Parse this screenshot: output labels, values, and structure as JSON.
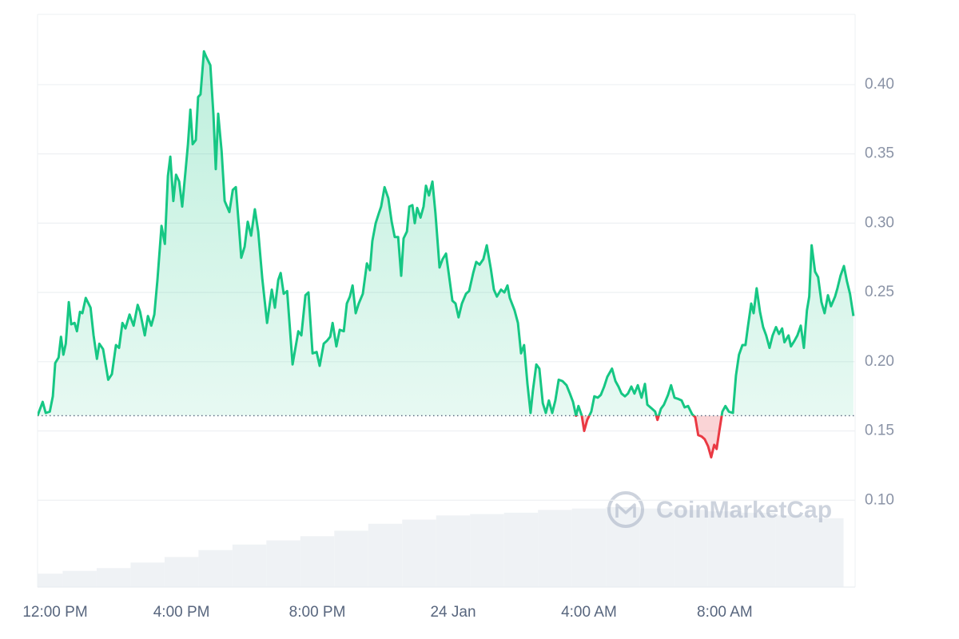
{
  "chart_data": {
    "type": "line",
    "watermark": "CoinMarketCap",
    "xlim": [
      -0.24,
      23.84
    ],
    "xticks": [
      {
        "value": 0,
        "label": "12:00 PM"
      },
      {
        "value": 4,
        "label": "4:00 PM"
      },
      {
        "value": 8,
        "label": "8:00 PM"
      },
      {
        "value": 12,
        "label": "24 Jan"
      },
      {
        "value": 16,
        "label": "4:00 AM"
      },
      {
        "value": 20,
        "label": "8:00 AM"
      }
    ],
    "ylim": [
      0.0373,
      0.4507
    ],
    "yticks": [
      {
        "value": 0.1,
        "label": "0.10"
      },
      0.15,
      {
        "value": 0.2,
        "label": "0.20"
      },
      0.25,
      {
        "value": 0.3,
        "label": "0.30"
      },
      0.35,
      {
        "value": 0.4,
        "label": "0.40"
      }
    ],
    "grid": true,
    "baseline": 0.161,
    "series": [
      {
        "color": "#16c784",
        "below_color": "#ea3943",
        "x": [
          -0.24,
          -0.09,
          0,
          0.12,
          0.21,
          0.28,
          0.38,
          0.45,
          0.52,
          0.59,
          0.68,
          0.75,
          0.85,
          0.92,
          1.01,
          1.08,
          1.18,
          1.32,
          1.41,
          1.51,
          1.58,
          1.69,
          1.84,
          1.95,
          2.07,
          2.16,
          2.26,
          2.35,
          2.47,
          2.59,
          2.71,
          2.78,
          2.92,
          3.01,
          3.11,
          3.2,
          3.29,
          3.41,
          3.51,
          3.6,
          3.67,
          3.76,
          3.84,
          3.93,
          4.02,
          4.12,
          4.19,
          4.26,
          4.33,
          4.42,
          4.49,
          4.56,
          4.66,
          4.73,
          4.85,
          4.94,
          5.01,
          5.08,
          5.18,
          5.27,
          5.41,
          5.51,
          5.6,
          5.69,
          5.76,
          5.86,
          5.95,
          6.05,
          6.16,
          6.26,
          6.38,
          6.52,
          6.66,
          6.75,
          6.85,
          6.92,
          7.01,
          7.11,
          7.27,
          7.44,
          7.53,
          7.65,
          7.74,
          7.86,
          7.98,
          8.07,
          8.19,
          8.28,
          8.38,
          8.45,
          8.56,
          8.66,
          8.78,
          8.87,
          8.96,
          9.04,
          9.13,
          9.22,
          9.34,
          9.46,
          9.55,
          9.62,
          9.72,
          9.81,
          9.88,
          9.98,
          10.09,
          10.19,
          10.28,
          10.38,
          10.47,
          10.54,
          10.64,
          10.71,
          10.8,
          10.87,
          10.94,
          11.04,
          11.13,
          11.2,
          11.29,
          11.39,
          11.48,
          11.6,
          11.69,
          11.79,
          11.88,
          11.98,
          12.07,
          12.16,
          12.26,
          12.38,
          12.47,
          12.59,
          12.68,
          12.78,
          12.89,
          12.99,
          13.11,
          13.2,
          13.29,
          13.41,
          13.51,
          13.6,
          13.67,
          13.81,
          13.91,
          14,
          14.09,
          14.19,
          14.28,
          14.35,
          14.45,
          14.54,
          14.64,
          14.73,
          14.82,
          14.92,
          15.01,
          15.11,
          15.22,
          15.34,
          15.44,
          15.53,
          15.62,
          15.69,
          15.79,
          15.86,
          15.95,
          16.07,
          16.16,
          16.26,
          16.35,
          16.45,
          16.54,
          16.68,
          16.78,
          16.87,
          16.96,
          17.06,
          17.15,
          17.25,
          17.34,
          17.44,
          17.55,
          17.65,
          17.72,
          17.86,
          17.95,
          18.02,
          18.12,
          18.21,
          18.33,
          18.42,
          18.52,
          18.64,
          18.73,
          18.82,
          18.92,
          19.04,
          19.13,
          19.22,
          19.32,
          19.41,
          19.51,
          19.6,
          19.69,
          19.76,
          19.84,
          19.93,
          20.02,
          20.12,
          20.24,
          20.33,
          20.42,
          20.52,
          20.61,
          20.68,
          20.78,
          20.85,
          20.94,
          21.04,
          21.13,
          21.22,
          21.32,
          21.41,
          21.51,
          21.6,
          21.69,
          21.76,
          21.88,
          21.95,
          22.05,
          22.14,
          22.24,
          22.33,
          22.42,
          22.49,
          22.56,
          22.66,
          22.75,
          22.85,
          22.94,
          23.04,
          23.13,
          23.25,
          23.32,
          23.41,
          23.51,
          23.6,
          23.69,
          23.79
        ],
        "values": [
          0.161,
          0.171,
          0.163,
          0.164,
          0.175,
          0.199,
          0.203,
          0.218,
          0.205,
          0.213,
          0.243,
          0.227,
          0.228,
          0.222,
          0.236,
          0.235,
          0.246,
          0.239,
          0.219,
          0.202,
          0.213,
          0.209,
          0.187,
          0.191,
          0.212,
          0.21,
          0.228,
          0.224,
          0.234,
          0.226,
          0.241,
          0.236,
          0.219,
          0.233,
          0.226,
          0.234,
          0.259,
          0.298,
          0.285,
          0.334,
          0.348,
          0.316,
          0.335,
          0.33,
          0.312,
          0.338,
          0.357,
          0.382,
          0.357,
          0.36,
          0.391,
          0.393,
          0.424,
          0.42,
          0.414,
          0.378,
          0.339,
          0.379,
          0.352,
          0.316,
          0.308,
          0.324,
          0.326,
          0.298,
          0.275,
          0.283,
          0.301,
          0.291,
          0.31,
          0.294,
          0.26,
          0.228,
          0.252,
          0.239,
          0.259,
          0.264,
          0.249,
          0.251,
          0.198,
          0.222,
          0.219,
          0.248,
          0.25,
          0.206,
          0.207,
          0.197,
          0.213,
          0.215,
          0.218,
          0.228,
          0.211,
          0.223,
          0.222,
          0.242,
          0.247,
          0.255,
          0.235,
          0.242,
          0.249,
          0.271,
          0.266,
          0.287,
          0.3,
          0.307,
          0.312,
          0.326,
          0.318,
          0.301,
          0.29,
          0.29,
          0.262,
          0.289,
          0.294,
          0.312,
          0.313,
          0.3,
          0.311,
          0.304,
          0.312,
          0.327,
          0.32,
          0.33,
          0.307,
          0.268,
          0.274,
          0.278,
          0.262,
          0.244,
          0.242,
          0.232,
          0.242,
          0.249,
          0.251,
          0.264,
          0.272,
          0.27,
          0.274,
          0.284,
          0.267,
          0.252,
          0.247,
          0.252,
          0.25,
          0.255,
          0.246,
          0.237,
          0.228,
          0.206,
          0.212,
          0.184,
          0.163,
          0.179,
          0.198,
          0.195,
          0.17,
          0.163,
          0.172,
          0.163,
          0.172,
          0.187,
          0.186,
          0.183,
          0.177,
          0.171,
          0.161,
          0.168,
          0.161,
          0.15,
          0.158,
          0.164,
          0.175,
          0.174,
          0.176,
          0.182,
          0.189,
          0.195,
          0.186,
          0.182,
          0.177,
          0.175,
          0.177,
          0.182,
          0.177,
          0.183,
          0.174,
          0.184,
          0.169,
          0.166,
          0.164,
          0.158,
          0.166,
          0.169,
          0.176,
          0.183,
          0.174,
          0.173,
          0.172,
          0.167,
          0.168,
          0.162,
          0.16,
          0.147,
          0.146,
          0.144,
          0.139,
          0.131,
          0.14,
          0.137,
          0.15,
          0.164,
          0.168,
          0.164,
          0.163,
          0.19,
          0.205,
          0.212,
          0.212,
          0.225,
          0.242,
          0.235,
          0.253,
          0.236,
          0.225,
          0.219,
          0.21,
          0.219,
          0.225,
          0.22,
          0.224,
          0.214,
          0.219,
          0.211,
          0.215,
          0.219,
          0.226,
          0.21,
          0.237,
          0.247,
          0.284,
          0.265,
          0.261,
          0.243,
          0.235,
          0.248,
          0.24,
          0.247,
          0.253,
          0.262,
          0.269,
          0.258,
          0.249,
          0.233
        ]
      }
    ],
    "volume": {
      "color": "#eff2f5",
      "x": [
        0,
        1,
        2,
        3,
        4,
        5,
        6,
        7,
        8,
        9,
        10,
        11,
        12,
        13,
        14,
        15,
        16,
        17,
        18,
        19,
        20,
        21,
        22,
        23
      ],
      "values": [
        0.047,
        0.049,
        0.051,
        0.055,
        0.059,
        0.064,
        0.068,
        0.071,
        0.074,
        0.078,
        0.083,
        0.086,
        0.089,
        0.09,
        0.091,
        0.093,
        0.094,
        0.095,
        0.094,
        0.093,
        0.092,
        0.091,
        0.089,
        0.087
      ]
    }
  }
}
